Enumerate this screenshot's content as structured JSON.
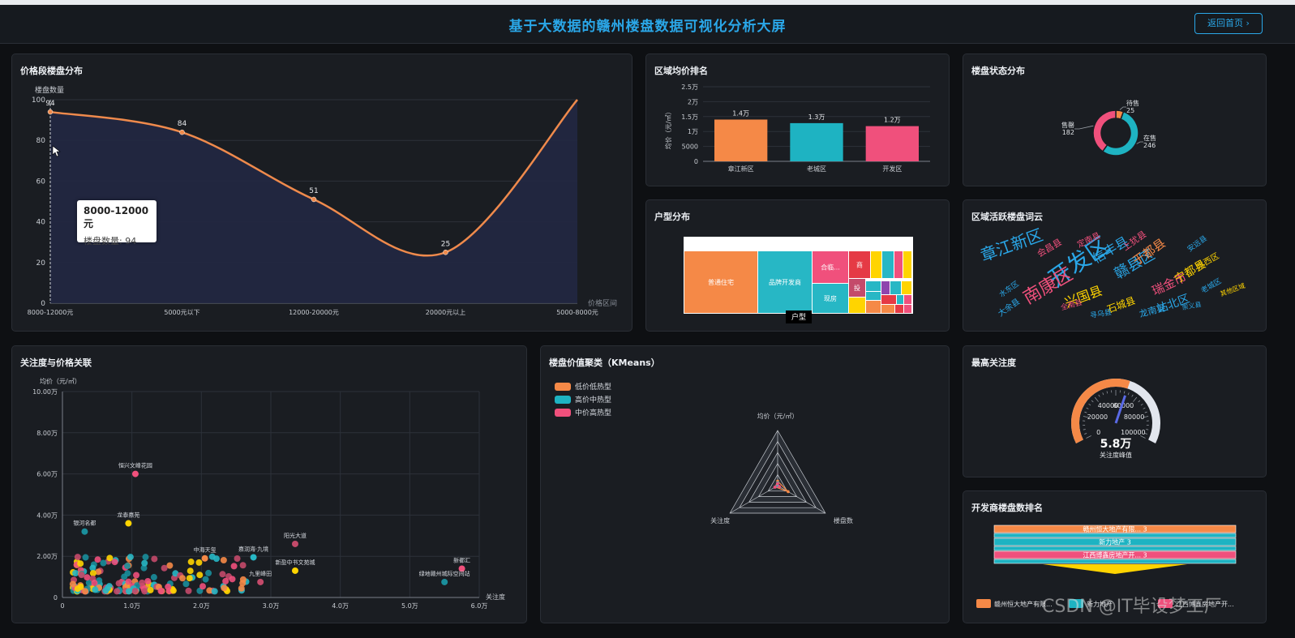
{
  "header": {
    "title": "基于大数据的赣州楼盘数据可视化分析大屏",
    "back_label": "返回首页"
  },
  "panels": {
    "price_dist": "价格段楼盘分布",
    "region_price": "区域均价排名",
    "status": "楼盘状态分布",
    "house_type": "户型分布",
    "wordcloud": "区域活跃楼盘词云",
    "attention_price": "关注度与价格关联",
    "kmeans": "楼盘价值聚类（KMeans）",
    "max_attention": "最高关注度",
    "developer": "开发商楼盘数排名"
  },
  "tooltip": {
    "title": "8000-12000元",
    "label": "楼盘数量:",
    "value": "94"
  },
  "gauge": {
    "value": "5.8万",
    "label": "关注度峰值"
  },
  "treemap_root": "户型",
  "wordcloud_words": [
    "章江新区",
    "开发区",
    "南康区",
    "赣县区",
    "信丰县",
    "于都县",
    "会昌县",
    "定南县",
    "上犹县",
    "瑞金市",
    "兴国县",
    "宁都县",
    "水西区",
    "石城县",
    "站北区",
    "龙南县",
    "全南县",
    "寻乌县",
    "大余县",
    "崇义县",
    "水东区",
    "安远县",
    "老城区",
    "其他区域"
  ],
  "watermark": "CSDN @IT毕设梦工厂",
  "chart_data": [
    {
      "type": "line",
      "title": "价格段楼盘分布",
      "ylabel": "楼盘数量",
      "xlabel": "价格区间",
      "categories": [
        "8000-12000元",
        "5000元以下",
        "12000-20000元",
        "20000元以上",
        "5000-8000元"
      ],
      "values": [
        94,
        84,
        51,
        25,
        100
      ],
      "point_labels": [
        "94",
        "84",
        "51",
        "25",
        ""
      ],
      "ylim": [
        0,
        100
      ],
      "yticks": [
        "0",
        "20",
        "40",
        "60",
        "80",
        "100"
      ],
      "colors": {
        "line": "#ef8a4c",
        "area": "#222842"
      }
    },
    {
      "type": "bar",
      "title": "区域均价排名",
      "ylabel": "均价（元/㎡）",
      "categories": [
        "章江新区",
        "老城区",
        "开发区"
      ],
      "values": [
        14000,
        12800,
        11800
      ],
      "value_labels": [
        "1.4万",
        "1.3万",
        "1.2万"
      ],
      "ylim": [
        0,
        25000
      ],
      "yticks": [
        "0",
        "5000",
        "1万",
        "1.5万",
        "2万",
        "2.5万"
      ],
      "colors": [
        "#f58947",
        "#1eb3c2",
        "#f0507c"
      ]
    },
    {
      "type": "pie",
      "title": "楼盘状态分布",
      "categories": [
        "待售",
        "在售",
        "售罄"
      ],
      "values": [
        25,
        246,
        182
      ],
      "colors": [
        "#f58947",
        "#1eb3c2",
        "#f0507c"
      ]
    },
    {
      "type": "heatmap",
      "title": "户型分布",
      "categories": [
        "普通住宅",
        "品牌开发商",
        "合临...",
        "商",
        "现房",
        "投"
      ],
      "values": [
        32,
        24,
        10,
        5,
        10,
        3
      ],
      "colors": [
        "#f58947",
        "#27b7c5",
        "#f0507c",
        "#e53a45",
        "#27b7c5",
        "#c44a6a"
      ]
    },
    {
      "type": "scatter",
      "title": "关注度与价格关联",
      "xlabel": "关注度",
      "ylabel": "均价（元/㎡）",
      "xlim": [
        0,
        60000
      ],
      "ylim": [
        0,
        100000
      ],
      "xticks": [
        "0",
        "1.0万",
        "2.0万",
        "3.0万",
        "4.0万",
        "5.0万",
        "6.0万"
      ],
      "yticks": [
        "0",
        "2.00万",
        "4.00万",
        "6.00万",
        "8.00万",
        "10.00万"
      ],
      "labeled_points": [
        {
          "name": "恒兴文峰花园",
          "x": 10500,
          "y": 60000
        },
        {
          "name": "龙泰嘉苑",
          "x": 9500,
          "y": 36000
        },
        {
          "name": "银河名都",
          "x": 3200,
          "y": 32000
        },
        {
          "name": "阳光大道",
          "x": 33500,
          "y": 26000
        },
        {
          "name": "中海天玺",
          "x": 20500,
          "y": 19000
        },
        {
          "name": "嘉润海·九境",
          "x": 27500,
          "y": 19500
        },
        {
          "name": "新都汇",
          "x": 57500,
          "y": 14000
        },
        {
          "name": "新盈中书文苑城",
          "x": 33500,
          "y": 13000
        },
        {
          "name": "绿地赣州城际空间站",
          "x": 55000,
          "y": 7500
        },
        {
          "name": "九里峰田",
          "x": 28500,
          "y": 7500
        }
      ]
    },
    {
      "type": "line",
      "title": "楼盘价值聚类（KMeans）",
      "axes": [
        "均价（元/㎡）",
        "楼盘数",
        "关注度"
      ],
      "series": [
        {
          "name": "低价低热型",
          "values": [
            0.08,
            0.22,
            0.05
          ]
        },
        {
          "name": "高价中热型",
          "values": [
            0.05,
            0.03,
            0.03
          ]
        },
        {
          "name": "中价高热型",
          "values": [
            0.04,
            0.04,
            0.06
          ]
        }
      ],
      "colors": [
        "#f58947",
        "#1eb3c2",
        "#f0507c"
      ]
    },
    {
      "type": "pie",
      "title": "最高关注度",
      "value": 58000,
      "max": 100000,
      "ticks": [
        "0",
        "20000",
        "40000",
        "60000",
        "80000",
        "100000"
      ]
    },
    {
      "type": "bar",
      "title": "开发商楼盘数排名",
      "categories": [
        "赣州恒大地产有限...",
        "新力地产",
        "江西博鑫房地产开..."
      ],
      "values": [
        3,
        3,
        3
      ],
      "labels": [
        "赣州恒大地产有限... 3",
        "新力地产 3",
        "江西博鑫房地产开... 3"
      ],
      "colors": [
        "#f58947",
        "#1eb3c2",
        "#f0507c"
      ]
    }
  ]
}
